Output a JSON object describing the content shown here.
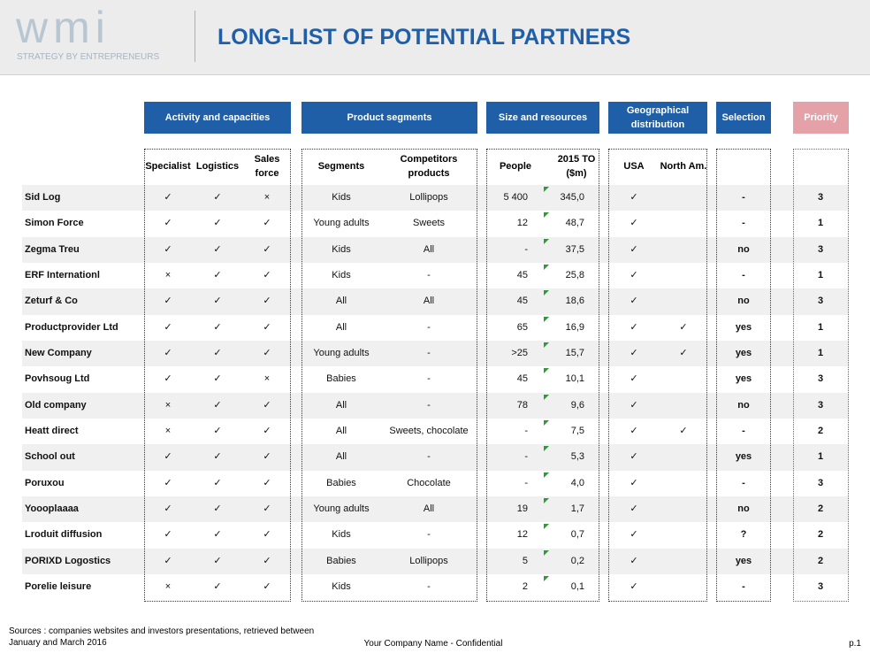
{
  "header": {
    "logo": "wmi",
    "tagline": "STRATEGY BY ENTREPRENEURS",
    "title": "LONG-LIST OF POTENTIAL PARTNERS"
  },
  "table": {
    "groups": [
      {
        "label": "Activity and capacities",
        "columns": [
          "Specialist",
          "Logistics",
          "Sales force"
        ]
      },
      {
        "label": "Product segments",
        "columns": [
          "Segments",
          "Competitors products"
        ]
      },
      {
        "label": "Size and resources",
        "columns": [
          "People",
          "2015 TO ($m)"
        ]
      },
      {
        "label": "Geographical distribution",
        "columns": [
          "USA",
          "North Am."
        ]
      },
      {
        "label": "Selection",
        "columns": []
      },
      {
        "label": "Priority",
        "columns": []
      }
    ],
    "rows": [
      [
        "Sid Log",
        "✓",
        "✓",
        "×",
        "Kids",
        "Lollipops",
        "5 400",
        "345,0",
        "✓",
        null,
        "-",
        "3"
      ],
      [
        "Simon Force",
        "✓",
        "✓",
        "✓",
        "Young adults",
        "Sweets",
        "12",
        "48,7",
        "✓",
        null,
        "-",
        "1"
      ],
      [
        "Zegma Treu",
        "✓",
        "✓",
        "✓",
        "Kids",
        "All",
        "-",
        "37,5",
        "✓",
        null,
        "no",
        "3"
      ],
      [
        "ERF Internationl",
        "×",
        "✓",
        "✓",
        "Kids",
        "-",
        "45",
        "25,8",
        "✓",
        null,
        "-",
        "1"
      ],
      [
        "Zeturf & Co",
        "✓",
        "✓",
        "✓",
        "All",
        "All",
        "45",
        "18,6",
        "✓",
        null,
        "no",
        "3"
      ],
      [
        "Productprovider Ltd",
        "✓",
        "✓",
        "✓",
        "All",
        "-",
        "65",
        "16,9",
        "✓",
        "✓",
        "yes",
        "1"
      ],
      [
        "New Company",
        "✓",
        "✓",
        "✓",
        "Young adults",
        "-",
        ">25",
        "15,7",
        "✓",
        "✓",
        "yes",
        "1"
      ],
      [
        "Povhsoug Ltd",
        "✓",
        "✓",
        "×",
        "Babies",
        "-",
        "45",
        "10,1",
        "✓",
        null,
        "yes",
        "3"
      ],
      [
        "Old company",
        "×",
        "✓",
        "✓",
        "All",
        "-",
        "78",
        "9,6",
        "✓",
        null,
        "no",
        "3"
      ],
      [
        "Heatt direct",
        "×",
        "✓",
        "✓",
        "All",
        "Sweets, chocolate",
        "-",
        "7,5",
        "✓",
        "✓",
        "-",
        "2"
      ],
      [
        "School out",
        "✓",
        "✓",
        "✓",
        "All",
        "-",
        "-",
        "5,3",
        "✓",
        null,
        "yes",
        "1"
      ],
      [
        "Poruxou",
        "✓",
        "✓",
        "✓",
        "Babies",
        "Chocolate",
        "-",
        "4,0",
        "✓",
        null,
        "-",
        "3"
      ],
      [
        "Yoooplaaaa",
        "✓",
        "✓",
        "✓",
        "Young adults",
        "All",
        "19",
        "1,7",
        "✓",
        null,
        "no",
        "2"
      ],
      [
        "Lroduit diffusion",
        "✓",
        "✓",
        "✓",
        "Kids",
        "-",
        "12",
        "0,7",
        "✓",
        null,
        "?",
        "2"
      ],
      [
        "PORIXD Logostics",
        "✓",
        "✓",
        "✓",
        "Babies",
        "Lollipops",
        "5",
        "0,2",
        "✓",
        null,
        "yes",
        "2"
      ],
      [
        "Porelie leisure",
        "×",
        "✓",
        "✓",
        "Kids",
        "-",
        "2",
        "0,1",
        "✓",
        null,
        "-",
        "3"
      ]
    ]
  },
  "footer": {
    "sources": "Sources : companies websites and investors presentations, retrieved between January and March 2016",
    "company": "Your Company Name - Confidential",
    "page": "p.1"
  }
}
